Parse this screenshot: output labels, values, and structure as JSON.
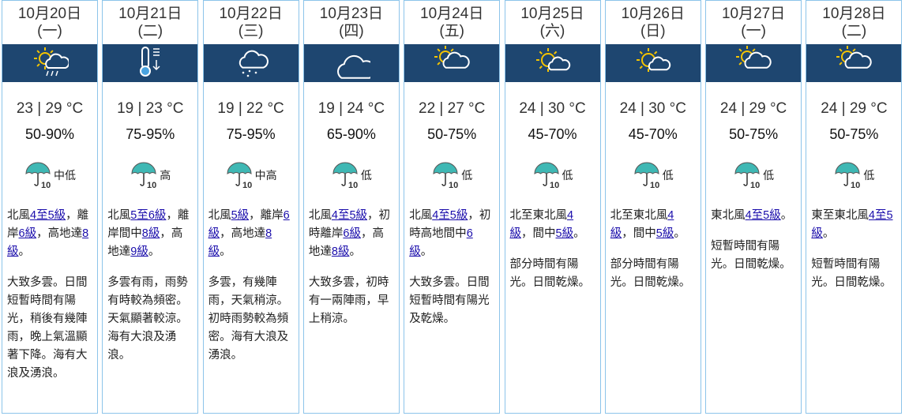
{
  "umbrella_label": "10",
  "days": [
    {
      "date": "10月20日",
      "weekday": "(一)",
      "temperature": "23 | 29 °C",
      "humidity": "50-90%",
      "psr": "中低",
      "wind": [
        {
          "text": "北風"
        },
        {
          "link": "4至5級"
        },
        {
          "text": "，離岸"
        },
        {
          "link": "6級"
        },
        {
          "text": "，高地達"
        },
        {
          "link": "8級"
        },
        {
          "text": "。"
        }
      ],
      "details": "大致多雲。日間短暫時間有陽光，稍後有幾陣雨，晚上氣溫顯著下降。海有大浪及湧浪。"
    },
    {
      "date": "10月21日",
      "weekday": "(二)",
      "temperature": "19 | 23 °C",
      "humidity": "75-95%",
      "psr": "高",
      "wind": [
        {
          "text": "北風"
        },
        {
          "link": "5至6級"
        },
        {
          "text": "，離岸間中"
        },
        {
          "link": "8級"
        },
        {
          "text": "，高地達"
        },
        {
          "link": "9級"
        },
        {
          "text": "。"
        }
      ],
      "details": "多雲有雨，雨勢有時較為頻密。天氣顯著較涼。海有大浪及湧浪。"
    },
    {
      "date": "10月22日",
      "weekday": "(三)",
      "temperature": "19 | 22 °C",
      "humidity": "75-95%",
      "psr": "中高",
      "wind": [
        {
          "text": "北風"
        },
        {
          "link": "5級"
        },
        {
          "text": "，離岸"
        },
        {
          "link": "6級"
        },
        {
          "text": "，高地達"
        },
        {
          "link": "8級"
        },
        {
          "text": "。"
        }
      ],
      "details": "多雲，有幾陣雨，天氣稍涼。初時雨勢較為頻密。海有大浪及湧浪。"
    },
    {
      "date": "10月23日",
      "weekday": "(四)",
      "temperature": "19 | 24 °C",
      "humidity": "65-90%",
      "psr": "低",
      "wind": [
        {
          "text": "北風"
        },
        {
          "link": "4至5級"
        },
        {
          "text": "，初時離岸"
        },
        {
          "link": "6級"
        },
        {
          "text": "，高地達"
        },
        {
          "link": "8級"
        },
        {
          "text": "。"
        }
      ],
      "details": "大致多雲，初時有一兩陣雨，早上稍涼。"
    },
    {
      "date": "10月24日",
      "weekday": "(五)",
      "temperature": "22 | 27 °C",
      "humidity": "50-75%",
      "psr": "低",
      "wind": [
        {
          "text": "北風"
        },
        {
          "link": "4至5級"
        },
        {
          "text": "，初時高地間中"
        },
        {
          "link": "6級"
        },
        {
          "text": "。"
        }
      ],
      "details": "大致多雲。日間短暫時間有陽光及乾燥。"
    },
    {
      "date": "10月25日",
      "weekday": "(六)",
      "temperature": "24 | 30 °C",
      "humidity": "45-70%",
      "psr": "低",
      "wind": [
        {
          "text": "北至東北風"
        },
        {
          "link": "4級"
        },
        {
          "text": "，間中"
        },
        {
          "link": "5級"
        },
        {
          "text": "。"
        }
      ],
      "details": "部分時間有陽光。日間乾燥。"
    },
    {
      "date": "10月26日",
      "weekday": "(日)",
      "temperature": "24 | 30 °C",
      "humidity": "45-70%",
      "psr": "低",
      "wind": [
        {
          "text": "北至東北風"
        },
        {
          "link": "4級"
        },
        {
          "text": "，間中"
        },
        {
          "link": "5級"
        },
        {
          "text": "。"
        }
      ],
      "details": "部分時間有陽光。日間乾燥。"
    },
    {
      "date": "10月27日",
      "weekday": "(一)",
      "temperature": "24 | 29 °C",
      "humidity": "50-75%",
      "psr": "低",
      "wind": [
        {
          "text": "東北風"
        },
        {
          "link": "4至5級"
        },
        {
          "text": "。"
        }
      ],
      "details": "短暫時間有陽光。日間乾燥。"
    },
    {
      "date": "10月28日",
      "weekday": "(二)",
      "temperature": "24 | 29 °C",
      "humidity": "50-75%",
      "psr": "低",
      "wind": [
        {
          "text": "東至東北風"
        },
        {
          "link": "4至5級"
        },
        {
          "text": "。"
        }
      ],
      "details": "短暫時間有陽光。日間乾燥。"
    }
  ]
}
